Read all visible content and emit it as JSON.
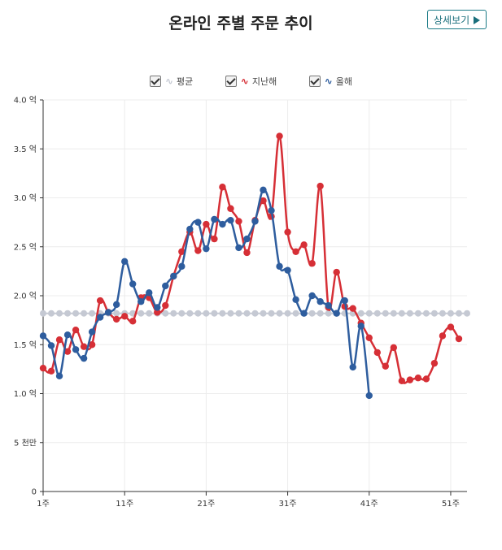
{
  "header": {
    "title": "온라인 주별 주문 추이",
    "detail_label": "상세보기"
  },
  "legend": [
    {
      "key": "avg",
      "label": "평균",
      "color": "#c5c9d3",
      "checked": true,
      "glyph": "∿"
    },
    {
      "key": "last",
      "label": "지난해",
      "color": "#d62f36",
      "checked": true,
      "glyph": "∿"
    },
    {
      "key": "this",
      "label": "올해",
      "color": "#2e5d9e",
      "checked": true,
      "glyph": "∿"
    }
  ],
  "chart_data": {
    "type": "line",
    "x_ticks": [
      "1주",
      "11주",
      "21주",
      "31주",
      "41주",
      "51주"
    ],
    "x_tick_values": [
      1,
      11,
      21,
      31,
      41,
      51
    ],
    "xlim": [
      1,
      53
    ],
    "ylim": [
      0,
      40000
    ],
    "y_ticks": [
      0,
      5000,
      10000,
      15000,
      20000,
      25000,
      30000,
      35000,
      40000
    ],
    "y_tick_labels": [
      "0",
      "5 천만",
      "1.0 억",
      "1.5 억",
      "2.0 억",
      "2.5 억",
      "3.0 억",
      "3.5 억",
      "4.0 억"
    ],
    "grid": true,
    "legend_position": "top-center",
    "series": [
      {
        "name": "평균",
        "color": "#c5c9d3",
        "dashed_markers": true,
        "x": [
          1,
          2,
          3,
          4,
          5,
          6,
          7,
          8,
          9,
          10,
          11,
          12,
          13,
          14,
          15,
          16,
          17,
          18,
          19,
          20,
          21,
          22,
          23,
          24,
          25,
          26,
          27,
          28,
          29,
          30,
          31,
          32,
          33,
          34,
          35,
          36,
          37,
          38,
          39,
          40,
          41,
          42,
          43,
          44,
          45,
          46,
          47,
          48,
          49,
          50,
          51,
          52,
          53
        ],
        "y": [
          18200,
          18200,
          18200,
          18200,
          18200,
          18200,
          18200,
          18200,
          18200,
          18200,
          18200,
          18200,
          18200,
          18200,
          18200,
          18200,
          18200,
          18200,
          18200,
          18200,
          18200,
          18200,
          18200,
          18200,
          18200,
          18200,
          18200,
          18200,
          18200,
          18200,
          18200,
          18200,
          18200,
          18200,
          18200,
          18200,
          18200,
          18200,
          18200,
          18200,
          18200,
          18200,
          18200,
          18200,
          18200,
          18200,
          18200,
          18200,
          18200,
          18200,
          18200,
          18200,
          18200
        ]
      },
      {
        "name": "지난해",
        "color": "#d62f36",
        "x": [
          1,
          2,
          3,
          4,
          5,
          6,
          7,
          8,
          9,
          10,
          11,
          12,
          13,
          14,
          15,
          16,
          17,
          18,
          19,
          20,
          21,
          22,
          23,
          24,
          25,
          26,
          27,
          28,
          29,
          30,
          31,
          32,
          33,
          34,
          35,
          36,
          37,
          38,
          39,
          40,
          41,
          42,
          43,
          44,
          45,
          46,
          47,
          48,
          49,
          50,
          51,
          52
        ],
        "y": [
          12600,
          12300,
          15500,
          14300,
          16500,
          14800,
          15000,
          19500,
          18300,
          17600,
          17900,
          17400,
          19800,
          19800,
          18300,
          19000,
          22000,
          24500,
          26500,
          24600,
          27300,
          25800,
          31100,
          28900,
          27600,
          24400,
          27700,
          29700,
          28100,
          36300,
          26500,
          24500,
          25200,
          23300,
          31200,
          18800,
          22400,
          18900,
          18700,
          17200,
          15700,
          14200,
          12800,
          14700,
          11300,
          11400,
          11600,
          11500,
          13100,
          15900,
          16800,
          15600
        ]
      },
      {
        "name": "올해",
        "color": "#2e5d9e",
        "x": [
          1,
          2,
          3,
          4,
          5,
          6,
          7,
          8,
          9,
          10,
          11,
          12,
          13,
          14,
          15,
          16,
          17,
          18,
          19,
          20,
          21,
          22,
          23,
          24,
          25,
          26,
          27,
          28,
          29,
          30,
          31,
          32,
          33,
          34,
          35,
          36,
          37,
          38,
          39,
          40,
          41
        ],
        "y": [
          15900,
          14900,
          11800,
          16000,
          14500,
          13600,
          16300,
          17800,
          18300,
          19100,
          23500,
          21200,
          19400,
          20300,
          18800,
          21000,
          22000,
          23000,
          26800,
          27500,
          24800,
          27800,
          27300,
          27700,
          24900,
          25800,
          27600,
          30800,
          28700,
          23000,
          22600,
          19600,
          18200,
          20000,
          19400,
          19000,
          18200,
          19500,
          12700,
          16900,
          9800
        ]
      }
    ]
  }
}
